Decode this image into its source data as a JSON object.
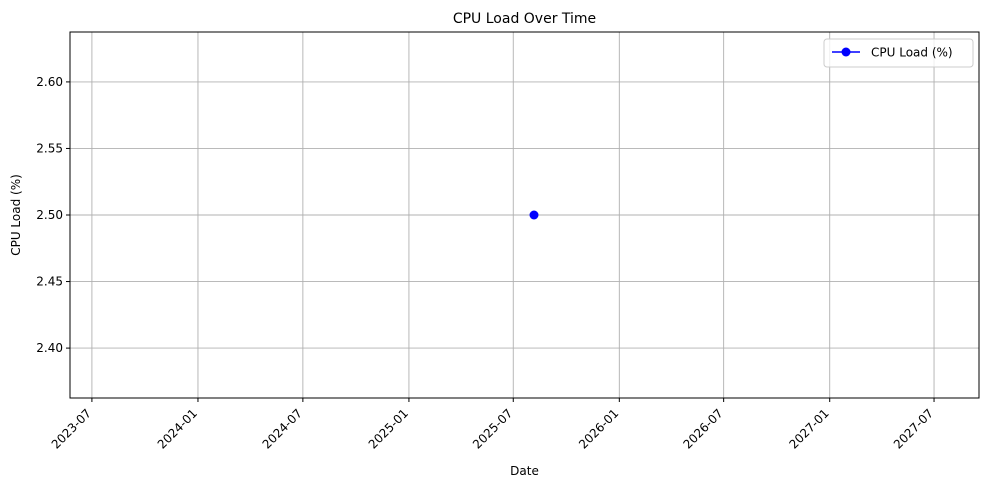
{
  "chart_data": {
    "type": "line",
    "title": "CPU Load Over Time",
    "xlabel": "Date",
    "ylabel": "CPU Load (%)",
    "x_axis_type": "date",
    "xlim": [
      "2023-05-24",
      "2027-09-17"
    ],
    "ylim": [
      2.3625,
      2.6375
    ],
    "x_ticks": [
      "2023-07",
      "2024-01",
      "2024-07",
      "2025-01",
      "2025-07",
      "2026-01",
      "2026-07",
      "2027-01",
      "2027-07"
    ],
    "x_tick_rotation": 45,
    "y_ticks": [
      "2.40",
      "2.45",
      "2.50",
      "2.55",
      "2.60"
    ],
    "grid": true,
    "legend": {
      "position": "upper-right",
      "entries": [
        "CPU Load (%)"
      ]
    },
    "series": [
      {
        "name": "CPU Load (%)",
        "color": "#0000ff",
        "marker": "circle",
        "points": [
          {
            "x": "2025-08-06",
            "y": 2.5
          }
        ]
      }
    ]
  }
}
